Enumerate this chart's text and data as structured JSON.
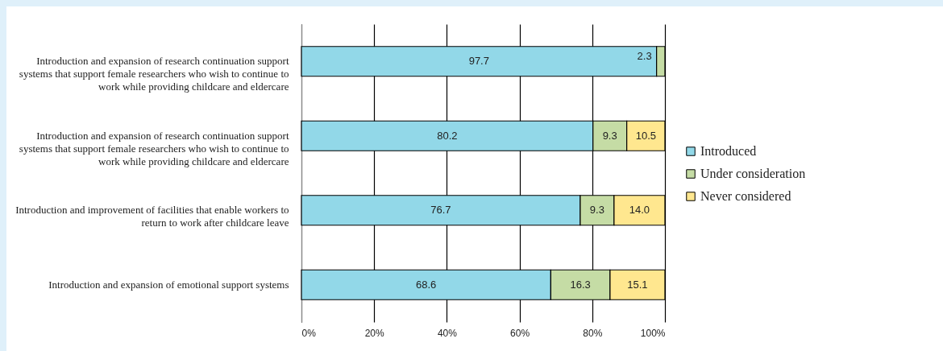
{
  "chart_data": {
    "type": "bar",
    "orientation": "horizontal",
    "stacked": true,
    "categories": [
      "Introduction and expansion of research continuation support systems that support female researchers who wish to continue to work while providing childcare and eldercare",
      "Introduction and expansion of research continuation support systems that support female researchers who wish to continue to work while providing childcare and eldercare",
      "Introduction and improvement of facilities that enable workers to return to work after childcare leave",
      "Introduction and expansion of emotional support systems"
    ],
    "series": [
      {
        "name": "Introduced",
        "color": "#92d8e8",
        "values": [
          97.7,
          80.2,
          76.7,
          68.6
        ],
        "value_labels": [
          "97.7",
          "80.2",
          "76.7",
          "68.6"
        ]
      },
      {
        "name": "Under consideration",
        "color": "#c5dca5",
        "values": [
          2.3,
          9.3,
          9.3,
          16.3
        ],
        "value_labels": [
          "2.3",
          "9.3",
          "9.3",
          "16.3"
        ]
      },
      {
        "name": "Never considered",
        "color": "#ffe78f",
        "values": [
          null,
          10.5,
          14.0,
          15.1
        ],
        "value_labels": [
          null,
          "10.5",
          "14.0",
          "15.1"
        ]
      }
    ],
    "xlim": [
      0,
      100
    ],
    "xticks": [
      {
        "value": 0,
        "label": "0%"
      },
      {
        "value": 20,
        "label": "20%"
      },
      {
        "value": 40,
        "label": "40%"
      },
      {
        "value": 60,
        "label": "60%"
      },
      {
        "value": 80,
        "label": "80%"
      },
      {
        "value": 100,
        "label": "100%"
      }
    ],
    "grid": "x",
    "legend": "right"
  }
}
